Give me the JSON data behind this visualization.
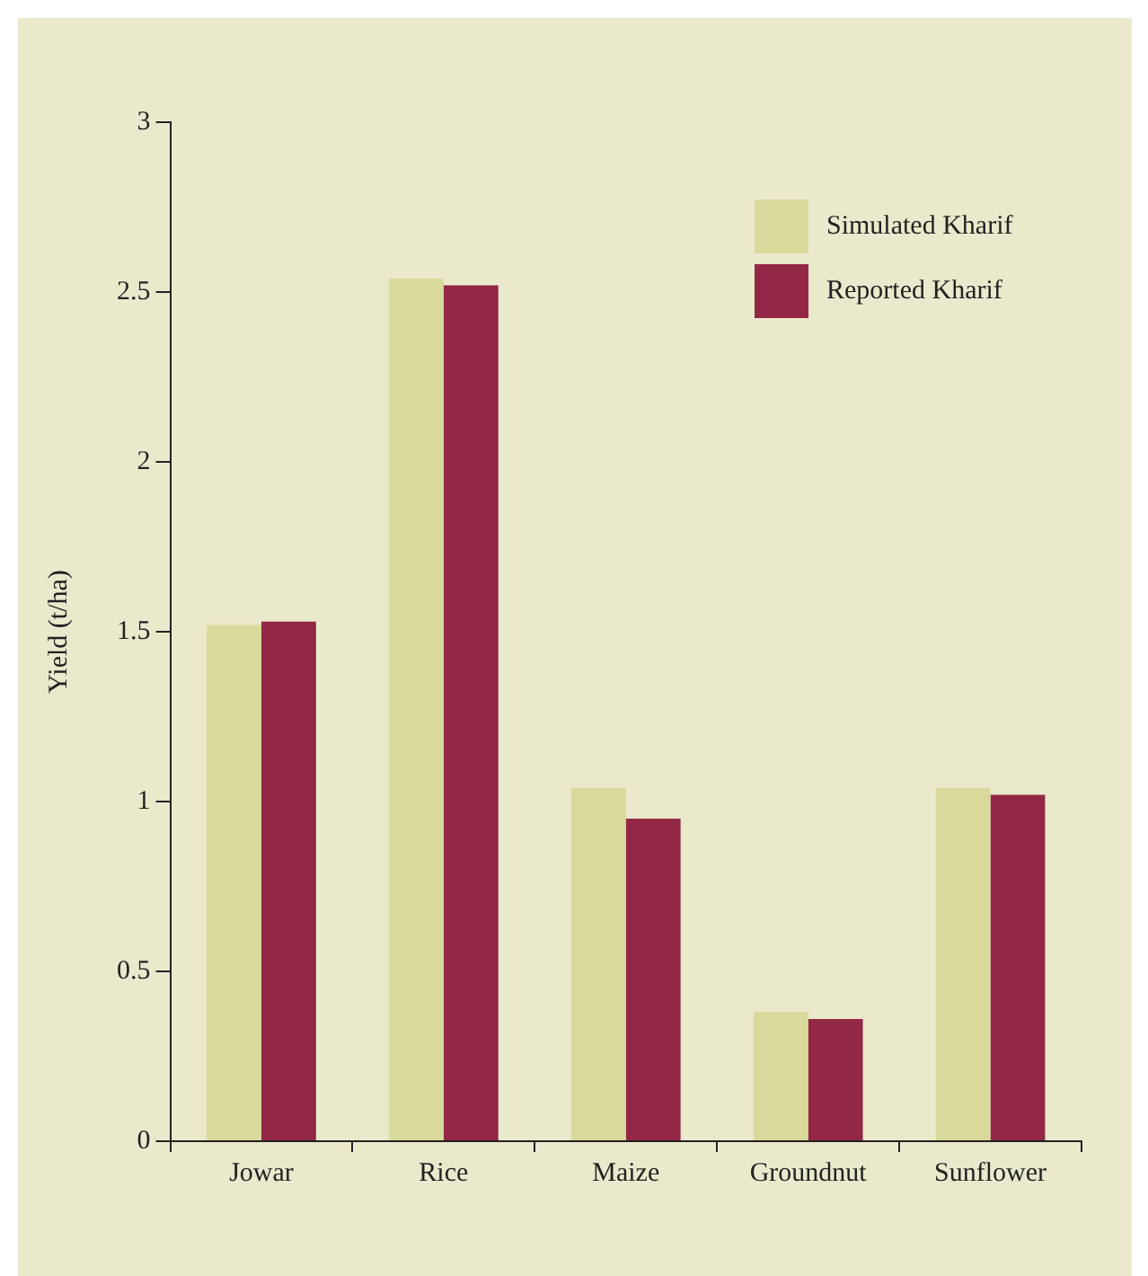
{
  "chart_data": {
    "type": "bar",
    "ylabel": "Yield (t/ha)",
    "categories": [
      "Jowar",
      "Rice",
      "Maize",
      "Groundnut",
      "Sunflower"
    ],
    "series": [
      {
        "name": "Simulated Kharif",
        "color": "#d9d99b",
        "values": [
          1.52,
          2.54,
          1.04,
          0.38,
          1.04
        ]
      },
      {
        "name": "Reported Kharif",
        "color": "#922845",
        "values": [
          1.53,
          2.52,
          0.95,
          0.36,
          1.02
        ]
      }
    ],
    "ylim": [
      0,
      3
    ],
    "yticks": [
      0,
      0.5,
      1,
      1.5,
      2,
      2.5,
      3
    ],
    "grid": false,
    "legend": "top right"
  }
}
